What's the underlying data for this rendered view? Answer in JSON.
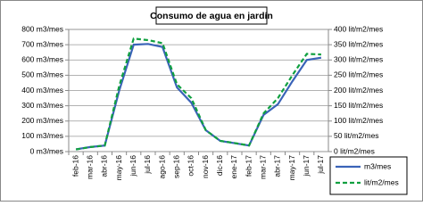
{
  "chart_data": {
    "type": "line",
    "title": "Consumo de agua en jardín",
    "categories": [
      "feb-16",
      "mar-16",
      "abr-16",
      "may-16",
      "jun-16",
      "jul-16",
      "ago-16",
      "sep-16",
      "oct-16",
      "nov-16",
      "dic-16",
      "ene-17",
      "feb-17",
      "mar-17",
      "abr-17",
      "may-17",
      "jun-17",
      "jul-17"
    ],
    "series": [
      {
        "name": "m3/mes",
        "color": "#3a63b8",
        "values": [
          15,
          30,
          40,
          400,
          700,
          705,
          685,
          420,
          320,
          140,
          70,
          55,
          40,
          240,
          310,
          460,
          600,
          615
        ]
      },
      {
        "name": "lit/m2/mes",
        "color": "#10a040",
        "axis": "y2",
        "dashed": true,
        "values": [
          7,
          15,
          20,
          215,
          370,
          365,
          355,
          220,
          175,
          70,
          35,
          28,
          20,
          125,
          175,
          250,
          320,
          318
        ]
      }
    ],
    "ylim": [
      0,
      800
    ],
    "yticks": [
      {
        "value": 0,
        "label": "0 m3/mes"
      },
      {
        "value": 100,
        "label": "100 m3/mes"
      },
      {
        "value": 200,
        "label": "200 m3/mes"
      },
      {
        "value": 300,
        "label": "300 m3/mes"
      },
      {
        "value": 400,
        "label": "400 m3/mes"
      },
      {
        "value": 500,
        "label": "500 m3/mes"
      },
      {
        "value": 600,
        "label": "600 m3/mes"
      },
      {
        "value": 700,
        "label": "700 m3/mes"
      },
      {
        "value": 800,
        "label": "800 m3/mes"
      }
    ],
    "y2lim": [
      0,
      400
    ],
    "y2ticks": [
      {
        "value": 0,
        "label": "0 lit/m2/mes"
      },
      {
        "value": 50,
        "label": "50 lit/m2/mes"
      },
      {
        "value": 100,
        "label": "100 lit/m2/mes"
      },
      {
        "value": 150,
        "label": "150 lit/m2/mes"
      },
      {
        "value": 200,
        "label": "200 lit/m2/mes"
      },
      {
        "value": 250,
        "label": "250 lit/m2/mes"
      },
      {
        "value": 300,
        "label": "300 lit/m2/mes"
      },
      {
        "value": 350,
        "label": "350 lit/m2/mes"
      },
      {
        "value": 400,
        "label": "400 lit/m2/mes"
      }
    ],
    "grid": true,
    "legend": "bottom-right"
  }
}
